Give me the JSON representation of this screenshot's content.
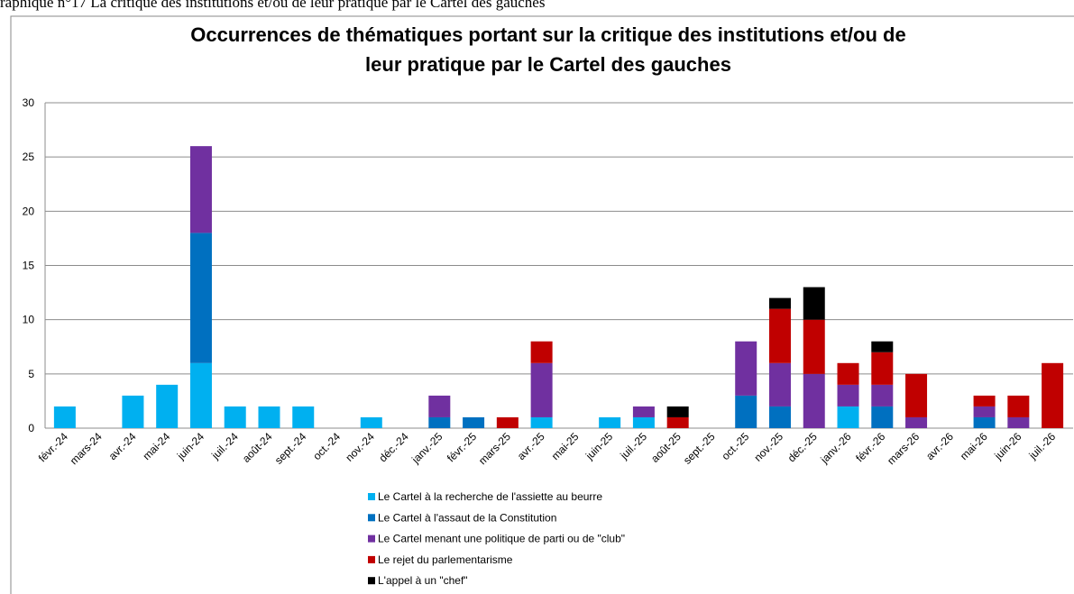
{
  "caption": "raphique n°17 La critique des institutions et/ou de leur pratique par le Cartel des gauches",
  "chart_data": {
    "type": "stacked_bar",
    "title": [
      "Occurrences de thématiques portant sur la critique des institutions et/ou de",
      "leur pratique par le Cartel des gauches"
    ],
    "categories": [
      "févr.-24",
      "mars-24",
      "avr.-24",
      "mai-24",
      "juin-24",
      "juil.-24",
      "août-24",
      "sept.-24",
      "oct.-24",
      "nov.-24",
      "déc.-24",
      "janv.-25",
      "févr.-25",
      "mars-25",
      "avr.-25",
      "mai-25",
      "juin-25",
      "juil.-25",
      "août-25",
      "sept.-25",
      "oct.-25",
      "nov.-25",
      "déc.-25",
      "janv.-26",
      "févr.-26",
      "mars-26",
      "avr.-26",
      "mai-26",
      "juin-26",
      "juil.-26"
    ],
    "series": [
      {
        "name": "Le Cartel à la recherche de l'assiette au beurre",
        "color": "#00b0f0",
        "values": [
          2,
          0,
          3,
          4,
          6,
          2,
          2,
          2,
          0,
          1,
          0,
          0,
          0,
          0,
          1,
          0,
          1,
          1,
          0,
          0,
          0,
          0,
          0,
          2,
          0,
          0,
          0,
          0,
          0,
          0
        ]
      },
      {
        "name": "Le Cartel à l'assaut de la Constitution",
        "color": "#0070c0",
        "values": [
          0,
          0,
          0,
          0,
          12,
          0,
          0,
          0,
          0,
          0,
          0,
          1,
          1,
          0,
          0,
          0,
          0,
          0,
          0,
          0,
          3,
          2,
          0,
          0,
          2,
          0,
          0,
          1,
          0,
          0
        ]
      },
      {
        "name": "Le Cartel menant une politique de parti ou de \"club\"",
        "color": "#7030a0",
        "values": [
          0,
          0,
          0,
          0,
          8,
          0,
          0,
          0,
          0,
          0,
          0,
          2,
          0,
          0,
          5,
          0,
          0,
          1,
          0,
          0,
          5,
          4,
          5,
          2,
          2,
          1,
          0,
          1,
          1,
          0
        ]
      },
      {
        "name": "Le rejet du parlementarisme",
        "color": "#c00000",
        "values": [
          0,
          0,
          0,
          0,
          0,
          0,
          0,
          0,
          0,
          0,
          0,
          0,
          0,
          1,
          2,
          0,
          0,
          0,
          1,
          0,
          0,
          5,
          5,
          2,
          3,
          4,
          0,
          1,
          2,
          6
        ]
      },
      {
        "name": "L'appel à un \"chef\"",
        "color": "#000000",
        "values": [
          0,
          0,
          0,
          0,
          0,
          0,
          0,
          0,
          0,
          0,
          0,
          0,
          0,
          0,
          0,
          0,
          0,
          0,
          1,
          0,
          0,
          1,
          3,
          0,
          1,
          0,
          0,
          0,
          0,
          0
        ]
      }
    ],
    "ylim": [
      0,
      30
    ],
    "yticks": [
      0,
      5,
      10,
      15,
      20,
      25,
      30
    ],
    "grid": true,
    "legend": "bottom"
  }
}
